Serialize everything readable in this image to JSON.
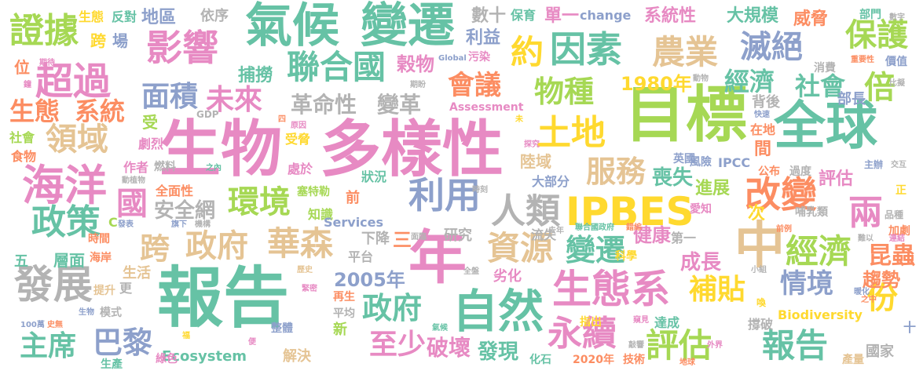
{
  "palette": {
    "green": "#66c2a5",
    "orange": "#fc8d62",
    "blue": "#8da0cb",
    "pink": "#e78ac3",
    "lime": "#a6d854",
    "yellow": "#ffd92f",
    "tan": "#e5c494",
    "gray": "#b3b3b3"
  },
  "words": [
    {
      "text": "報告",
      "color": "green"
    },
    {
      "text": "多樣性",
      "color": "pink"
    },
    {
      "text": "目標",
      "color": "lime"
    },
    {
      "text": "生物",
      "color": "pink"
    },
    {
      "text": "全球",
      "color": "green"
    },
    {
      "text": "年",
      "color": "pink"
    },
    {
      "text": "氣候",
      "color": "green"
    },
    {
      "text": "變遷",
      "color": "green"
    },
    {
      "text": "IPBES",
      "color": "yellow"
    },
    {
      "text": "中",
      "color": "tan"
    },
    {
      "text": "海洋",
      "color": "pink"
    },
    {
      "text": "自然",
      "color": "green"
    },
    {
      "text": "生態系",
      "color": "pink"
    },
    {
      "text": "影響",
      "color": "pink"
    },
    {
      "text": "改變",
      "color": "orange"
    },
    {
      "text": "利用",
      "color": "blue"
    },
    {
      "text": "發展",
      "color": "gray"
    },
    {
      "text": "評估",
      "color": "lime"
    },
    {
      "text": "報告",
      "color": "green"
    },
    {
      "text": "超過",
      "color": "pink"
    },
    {
      "text": "因素",
      "color": "green"
    },
    {
      "text": "聯合國",
      "color": "green"
    },
    {
      "text": "土地",
      "color": "yellow"
    },
    {
      "text": "華森",
      "color": "tan"
    },
    {
      "text": "農業",
      "color": "tan"
    },
    {
      "text": "人類",
      "color": "gray"
    },
    {
      "text": "環境",
      "color": "lime"
    },
    {
      "text": "政策",
      "color": "green"
    },
    {
      "text": "兩",
      "color": "pink"
    },
    {
      "text": "經濟",
      "color": "lime"
    },
    {
      "text": "永續",
      "color": "pink"
    },
    {
      "text": "資源",
      "color": "tan"
    },
    {
      "text": "證據",
      "color": "lime"
    },
    {
      "text": "保護",
      "color": "lime"
    },
    {
      "text": "滅絕",
      "color": "blue"
    },
    {
      "text": "約",
      "color": "yellow"
    },
    {
      "text": "會議",
      "color": "orange"
    },
    {
      "text": "物種",
      "color": "lime"
    },
    {
      "text": "服務",
      "color": "tan"
    },
    {
      "text": "政府",
      "color": "tan"
    },
    {
      "text": "跨",
      "color": "tan"
    },
    {
      "text": "政府",
      "color": "green"
    },
    {
      "text": "領域",
      "color": "tan"
    },
    {
      "text": "面積",
      "color": "blue"
    },
    {
      "text": "未來",
      "color": "pink"
    },
    {
      "text": "巴黎",
      "color": "blue"
    },
    {
      "text": "主席",
      "color": "green"
    },
    {
      "text": "情境",
      "color": "blue"
    },
    {
      "text": "補貼",
      "color": "yellow"
    },
    {
      "text": "變遷",
      "color": "green"
    },
    {
      "text": "至少",
      "color": "pink"
    },
    {
      "text": "國",
      "color": "pink"
    },
    {
      "text": "倍",
      "color": "lime"
    },
    {
      "text": "份",
      "color": "yellow"
    },
    {
      "text": "經濟",
      "color": "green"
    },
    {
      "text": "社會",
      "color": "green"
    },
    {
      "text": "生態",
      "color": "orange"
    },
    {
      "text": "系統",
      "color": "orange"
    },
    {
      "text": "1980年",
      "color": "yellow"
    },
    {
      "text": "革命性",
      "color": "gray"
    },
    {
      "text": "變革",
      "color": "gray"
    },
    {
      "text": "2005年",
      "color": "blue"
    },
    {
      "text": "喪失",
      "color": "green"
    },
    {
      "text": "昆蟲",
      "color": "orange"
    },
    {
      "text": "趨勢",
      "color": "orange"
    },
    {
      "text": "破壞",
      "color": "pink"
    },
    {
      "text": "發現",
      "color": "green"
    },
    {
      "text": "成長",
      "color": "pink"
    },
    {
      "text": "健康",
      "color": "pink"
    },
    {
      "text": "安全網",
      "color": "gray"
    },
    {
      "text": "榖物",
      "color": "pink"
    },
    {
      "text": "捕撈",
      "color": "green"
    },
    {
      "text": "大規模",
      "color": "green"
    },
    {
      "text": "系統性",
      "color": "pink"
    },
    {
      "text": "威脅",
      "color": "orange"
    },
    {
      "text": "數十",
      "color": "gray"
    },
    {
      "text": "單一",
      "color": "pink"
    },
    {
      "text": "利益",
      "color": "blue"
    },
    {
      "text": "地區",
      "color": "blue"
    },
    {
      "text": "跨",
      "color": "yellow"
    },
    {
      "text": "場",
      "color": "blue"
    },
    {
      "text": "依序",
      "color": "gray"
    },
    {
      "text": "生態",
      "color": "yellow"
    },
    {
      "text": "反對",
      "color": "green"
    },
    {
      "text": "保育",
      "color": "green"
    },
    {
      "text": "change",
      "color": "blue"
    },
    {
      "text": "位",
      "color": "orange"
    },
    {
      "text": "受",
      "color": "lime"
    },
    {
      "text": "社會",
      "color": "lime"
    },
    {
      "text": "食物",
      "color": "orange"
    },
    {
      "text": "劇烈",
      "color": "pink"
    },
    {
      "text": "作者",
      "color": "pink"
    },
    {
      "text": "燃料",
      "color": "gray"
    },
    {
      "text": "全面性",
      "color": "orange"
    },
    {
      "text": "處於",
      "color": "pink"
    },
    {
      "text": "狀況",
      "color": "green"
    },
    {
      "text": "陸域",
      "color": "tan"
    },
    {
      "text": "大部分",
      "color": "blue"
    },
    {
      "text": "進展",
      "color": "lime"
    },
    {
      "text": "評估",
      "color": "pink"
    },
    {
      "text": "間",
      "color": "orange"
    },
    {
      "text": "在地",
      "color": "orange"
    },
    {
      "text": "背後",
      "color": "gray"
    },
    {
      "text": "部長",
      "color": "blue"
    },
    {
      "text": "次",
      "color": "yellow"
    },
    {
      "text": "英國",
      "color": "blue"
    },
    {
      "text": "IPCC",
      "color": "blue"
    },
    {
      "text": "公布",
      "color": "orange"
    },
    {
      "text": "過度",
      "color": "gray"
    },
    {
      "text": "風險",
      "color": "blue"
    },
    {
      "text": "知識",
      "color": "lime"
    },
    {
      "text": "塞特勒",
      "color": "lime"
    },
    {
      "text": "前",
      "color": "orange"
    },
    {
      "text": "Services",
      "color": "blue"
    },
    {
      "text": "下降",
      "color": "gray"
    },
    {
      "text": "三",
      "color": "orange"
    },
    {
      "text": "研究",
      "color": "gray"
    },
    {
      "text": "流失",
      "color": "gray"
    },
    {
      "text": "第一",
      "color": "gray"
    },
    {
      "text": "平台",
      "color": "gray"
    },
    {
      "text": "層面",
      "color": "green"
    },
    {
      "text": "五",
      "color": "green"
    },
    {
      "text": "時間",
      "color": "orange"
    },
    {
      "text": "生活",
      "color": "tan"
    },
    {
      "text": "提升",
      "color": "tan"
    },
    {
      "text": "更",
      "color": "gray"
    },
    {
      "text": "模式",
      "color": "gray"
    },
    {
      "text": "Ecosystem",
      "color": "green"
    },
    {
      "text": "解決",
      "color": "tan"
    },
    {
      "text": "新",
      "color": "lime"
    },
    {
      "text": "再生",
      "color": "orange"
    },
    {
      "text": "平均",
      "color": "gray"
    },
    {
      "text": "劣化",
      "color": "pink"
    },
    {
      "text": "化石",
      "color": "green"
    },
    {
      "text": "2020年",
      "color": "orange"
    },
    {
      "text": "技術",
      "color": "orange"
    },
    {
      "text": "指出",
      "color": "yellow"
    },
    {
      "text": "達成",
      "color": "green"
    },
    {
      "text": "撐破",
      "color": "gray"
    },
    {
      "text": "Biodiversity",
      "color": "yellow"
    },
    {
      "text": "國家",
      "color": "gray"
    },
    {
      "text": "產量",
      "color": "tan"
    },
    {
      "text": "綠色",
      "color": "pink"
    },
    {
      "text": "整體",
      "color": "blue"
    },
    {
      "text": "生產",
      "color": "green"
    },
    {
      "text": "哺乳類",
      "color": "gray"
    },
    {
      "text": "科學",
      "color": "yellow"
    },
    {
      "text": "加劇",
      "color": "orange"
    },
    {
      "text": "品種",
      "color": "gray"
    },
    {
      "text": "價值",
      "color": "blue"
    },
    {
      "text": "消費",
      "color": "gray"
    },
    {
      "text": "部門",
      "color": "green"
    },
    {
      "text": "數字",
      "color": "gray"
    },
    {
      "text": "污染",
      "color": "pink"
    },
    {
      "text": "Assessment",
      "color": "pink"
    },
    {
      "text": "GDP",
      "color": "gray"
    },
    {
      "text": "C",
      "color": "lime"
    },
    {
      "text": "正",
      "color": "yellow"
    },
    {
      "text": "十",
      "color": "blue"
    },
    {
      "text": "愛知",
      "color": "pink"
    },
    {
      "text": "主辦",
      "color": "blue"
    },
    {
      "text": "交互",
      "color": "gray"
    },
    {
      "text": "比擬",
      "color": "gray"
    },
    {
      "text": "重要性",
      "color": "orange"
    },
    {
      "text": "Global",
      "color": "blue"
    },
    {
      "text": "聯合國政府",
      "color": "green"
    },
    {
      "text": "錯綜",
      "color": "orange"
    },
    {
      "text": "去年",
      "color": "gray"
    },
    {
      "text": "連結",
      "color": "pink"
    },
    {
      "text": "難以",
      "color": "gray"
    },
    {
      "text": "暖化",
      "color": "blue"
    },
    {
      "text": "之中",
      "color": "orange"
    },
    {
      "text": "外界",
      "color": "pink"
    },
    {
      "text": "地球",
      "color": "orange"
    },
    {
      "text": "敲響",
      "color": "gray"
    },
    {
      "text": "窺見",
      "color": "pink"
    },
    {
      "text": "喚",
      "color": "yellow"
    },
    {
      "text": "小組",
      "color": "gray"
    },
    {
      "text": "前例",
      "color": "orange"
    },
    {
      "text": "快速",
      "color": "blue"
    },
    {
      "text": "之內",
      "color": "green"
    },
    {
      "text": "時刻",
      "color": "gray"
    },
    {
      "text": "動植物",
      "color": "gray"
    },
    {
      "text": "原因",
      "color": "pink"
    },
    {
      "text": "受脅",
      "color": "yellow"
    },
    {
      "text": "四",
      "color": "orange"
    },
    {
      "text": "探究",
      "color": "pink"
    },
    {
      "text": "動物",
      "color": "gray"
    },
    {
      "text": "期盼",
      "color": "gray"
    },
    {
      "text": "期待",
      "color": "pink"
    },
    {
      "text": "鐘",
      "color": "pink"
    },
    {
      "text": "未",
      "color": "yellow"
    },
    {
      "text": "歷史",
      "color": "tan"
    },
    {
      "text": "緊密",
      "color": "pink"
    },
    {
      "text": "全盤",
      "color": "gray"
    },
    {
      "text": "面臨",
      "color": "gray"
    },
    {
      "text": "發表",
      "color": "blue"
    },
    {
      "text": "旗下",
      "color": "blue"
    },
    {
      "text": "機構",
      "color": "gray"
    },
    {
      "text": "海岸",
      "color": "orange"
    },
    {
      "text": "100萬",
      "color": "blue"
    },
    {
      "text": "史無",
      "color": "orange"
    },
    {
      "text": "生物",
      "color": "blue"
    },
    {
      "text": "氣候",
      "color": "green"
    },
    {
      "text": "便",
      "color": "pink"
    },
    {
      "text": "福",
      "color": "yellow"
    }
  ]
}
